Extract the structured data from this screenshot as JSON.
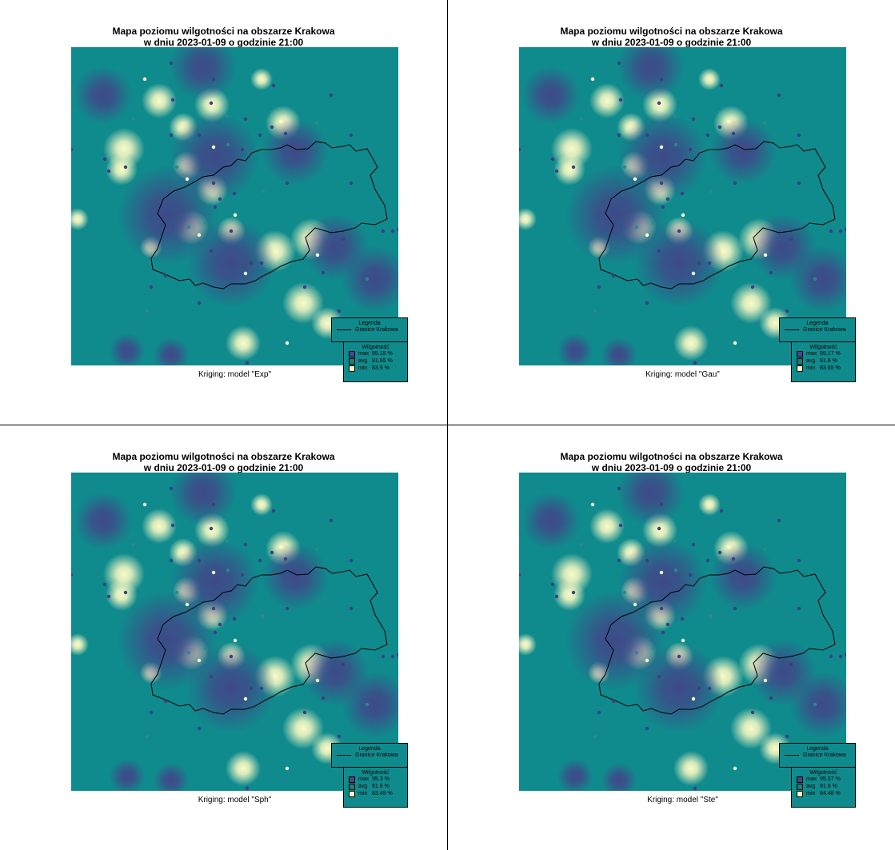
{
  "title_line1": "Mapa poziomu wilgotności na obszarze Krakowa",
  "title_line2": "w dniu 2023-01-09 o godzinie 21:00",
  "legend_title": "Legenda",
  "legend_line_label": "Granice Krakowa",
  "scale_title": "Wilgotność",
  "colors": {
    "background": "#0f8b8d",
    "low_humidity": "#fbfbc5",
    "high_humidity": "#3e4a89",
    "boundary": "#000000"
  },
  "panels": [
    {
      "caption": "Kriging: model \"Exp\"",
      "stats": [
        {
          "label": "max",
          "value": "95.15 %"
        },
        {
          "label": "avg",
          "value": "91.65 %"
        },
        {
          "label": "min",
          "value": "83.5 %"
        }
      ]
    },
    {
      "caption": "Kriging: model \"Gau\"",
      "stats": [
        {
          "label": "max",
          "value": "95.17 %"
        },
        {
          "label": "avg",
          "value": "91.6 %"
        },
        {
          "label": "min",
          "value": "83.55 %"
        }
      ]
    },
    {
      "caption": "Kriging: model \"Sph\"",
      "stats": [
        {
          "label": "max",
          "value": "95.3 %"
        },
        {
          "label": "avg",
          "value": "91.6 %"
        },
        {
          "label": "min",
          "value": "83.49 %"
        }
      ]
    },
    {
      "caption": "Kriging: model \"Ste\"",
      "stats": [
        {
          "label": "max",
          "value": "95.37 %"
        },
        {
          "label": "avg",
          "value": "91.6 %"
        },
        {
          "label": "min",
          "value": "84.48 %"
        }
      ]
    }
  ]
}
